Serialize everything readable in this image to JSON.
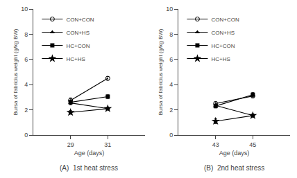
{
  "chart_data": [
    {
      "type": "line",
      "subtitle": "(A)  1st heat stress",
      "xlabel": "Age (days)",
      "ylabel": "Bursa of fabricius weight (g/kg BW)",
      "x": [
        29,
        31
      ],
      "series": [
        {
          "name": "CON+CON",
          "color": "black",
          "marker": "circle-open",
          "line_style": "solid",
          "values": [
            2.75,
            4.5
          ],
          "yerr": [
            0.2,
            0.15
          ]
        },
        {
          "name": "CON+HS",
          "color": "black",
          "marker": "triangle-up",
          "line_style": "solid",
          "values": [
            2.55,
            2.1
          ],
          "yerr": [
            0.15,
            0.1
          ]
        },
        {
          "name": "HC+CON",
          "color": "black",
          "marker": "square",
          "line_style": "solid",
          "values": [
            2.6,
            3.05
          ],
          "yerr": [
            0.18,
            0.15
          ]
        },
        {
          "name": "HC+HS",
          "color": "black",
          "marker": "star",
          "line_style": "solid",
          "values": [
            1.8,
            2.1
          ],
          "yerr": [
            0.15,
            0.1
          ]
        }
      ],
      "xlim": [
        27,
        33
      ],
      "xticks": [
        29,
        31
      ],
      "ylim": [
        0,
        10
      ],
      "yticks": [
        0,
        2,
        4,
        6,
        8,
        10
      ],
      "grid": false,
      "legend": "upper left"
    },
    {
      "type": "line",
      "subtitle": "(B)  2nd heat stress",
      "xlabel": "Age (days)",
      "ylabel": "Bursa of fabricius weight (g/kg BW)",
      "x": [
        43,
        45
      ],
      "series": [
        {
          "name": "CON+CON",
          "color": "black",
          "marker": "circle-open",
          "line_style": "solid",
          "values": [
            2.5,
            3.1
          ],
          "yerr": [
            0.15,
            0.15
          ]
        },
        {
          "name": "CON+HS",
          "color": "black",
          "marker": "triangle-up",
          "line_style": "solid",
          "values": [
            2.35,
            1.55
          ],
          "yerr": [
            0.12,
            0.12
          ]
        },
        {
          "name": "HC+CON",
          "color": "black",
          "marker": "square",
          "line_style": "solid",
          "values": [
            2.3,
            3.2
          ],
          "yerr": [
            0.15,
            0.18
          ]
        },
        {
          "name": "HC+HS",
          "color": "black",
          "marker": "star",
          "line_style": "solid",
          "values": [
            1.1,
            1.55
          ],
          "yerr": [
            0.2,
            0.12
          ]
        }
      ],
      "xlim": [
        41,
        47
      ],
      "xticks": [
        43,
        45
      ],
      "ylim": [
        0,
        10
      ],
      "yticks": [
        0,
        2,
        4,
        6,
        8,
        10
      ],
      "grid": false,
      "legend": "upper left"
    }
  ]
}
